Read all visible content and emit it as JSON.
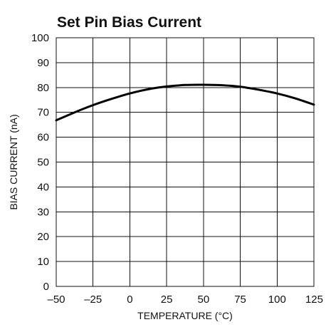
{
  "chart_data": {
    "type": "line",
    "title": "Set Pin Bias Current",
    "xlabel": "TEMPERATURE (°C)",
    "ylabel": "BIAS CURRENT (nA)",
    "xlim": [
      -50,
      125
    ],
    "ylim": [
      0,
      100
    ],
    "x_ticks": [
      -50,
      -25,
      0,
      25,
      50,
      75,
      100,
      125
    ],
    "x_tick_labels": [
      "–50",
      "–25",
      "0",
      "25",
      "50",
      "75",
      "100",
      "125"
    ],
    "y_ticks": [
      0,
      10,
      20,
      30,
      40,
      50,
      60,
      70,
      80,
      90,
      100
    ],
    "y_tick_labels": [
      "0",
      "10",
      "20",
      "30",
      "40",
      "50",
      "60",
      "70",
      "80",
      "90",
      "100"
    ],
    "grid": true,
    "series": [
      {
        "color": "#000000",
        "x": [
          -50,
          -37.5,
          -25,
          -12.5,
          0,
          12.5,
          25,
          37.5,
          50,
          62.5,
          75,
          87.5,
          100,
          112.5,
          125
        ],
        "y": [
          66.8,
          70.0,
          72.9,
          75.4,
          77.6,
          79.3,
          80.4,
          81.0,
          81.1,
          80.9,
          80.3,
          79.1,
          77.6,
          75.6,
          73.1
        ]
      }
    ]
  }
}
